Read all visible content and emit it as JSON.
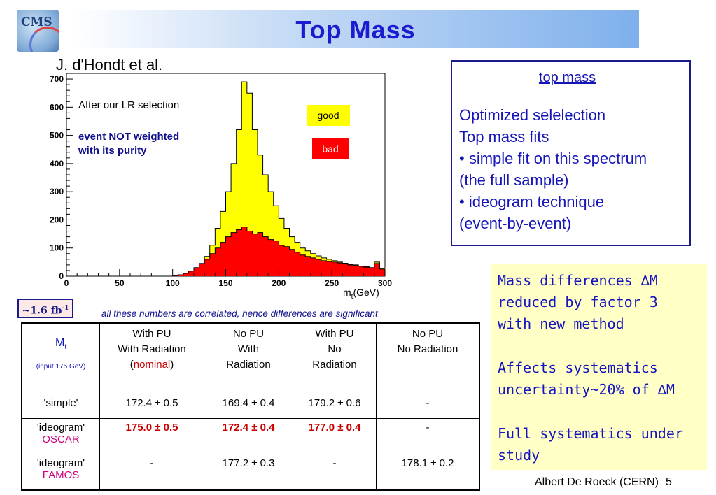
{
  "header": {
    "logo_text": "CMS",
    "title": "Top Mass"
  },
  "author_ref": "J. d'Hondt et al.",
  "plot": {
    "text_selection": "After our LR selection",
    "text_weight_line1": "event NOT weighted",
    "text_weight_line2": "with its purity",
    "legend_good": "good",
    "legend_bad": "bad",
    "xaxis_title_main": "m",
    "xaxis_title_sub": "t",
    "xaxis_title_unit": "(GeV)",
    "colors": {
      "good": "#ffff00",
      "bad": "#ff0000"
    }
  },
  "chart_data": {
    "type": "bar",
    "xlabel": "mt(GeV)",
    "xlim": [
      0,
      300
    ],
    "ylim": [
      0,
      720
    ],
    "x_ticks": [
      "0",
      "50",
      "100",
      "150",
      "200",
      "250",
      "300"
    ],
    "y_ticks": [
      "0",
      "100",
      "200",
      "300",
      "400",
      "500",
      "600",
      "700"
    ],
    "bin_width": 5,
    "bins_start": [
      100,
      105,
      110,
      115,
      120,
      125,
      130,
      135,
      140,
      145,
      150,
      155,
      160,
      165,
      170,
      175,
      180,
      185,
      190,
      195,
      200,
      205,
      210,
      215,
      220,
      225,
      230,
      235,
      240,
      245,
      250,
      255,
      260,
      265,
      270,
      275,
      280,
      285,
      290,
      295
    ],
    "series": [
      {
        "name": "good",
        "values": [
          2,
          5,
          10,
          18,
          30,
          45,
          70,
          110,
          170,
          230,
          300,
          400,
          520,
          690,
          650,
          520,
          430,
          360,
          300,
          250,
          205,
          170,
          140,
          120,
          100,
          90,
          80,
          72,
          65,
          60,
          55,
          50,
          46,
          42,
          40,
          36,
          34,
          30,
          50,
          28
        ]
      },
      {
        "name": "bad",
        "values": [
          2,
          5,
          10,
          18,
          30,
          45,
          60,
          80,
          100,
          120,
          140,
          155,
          165,
          175,
          160,
          150,
          155,
          140,
          130,
          125,
          110,
          105,
          95,
          85,
          75,
          70,
          65,
          60,
          55,
          52,
          50,
          47,
          44,
          40,
          38,
          35,
          32,
          30,
          45,
          25
        ]
      }
    ]
  },
  "lumi": {
    "value": "~1.6 fb",
    "exp": "-1"
  },
  "correlation_note": "all these numbers are correlated, hence differences are significant",
  "table": {
    "mt_label": "M",
    "mt_sub": "t",
    "mt_note": "(input 175 GeV)",
    "columns": [
      {
        "l1": "With PU",
        "l2": "With Radiation",
        "l3_pre": "(",
        "l3_nominal": "nominal",
        "l3_post": ")"
      },
      {
        "l1": "No PU",
        "l2": "With",
        "l3": "Radiation"
      },
      {
        "l1": "With PU",
        "l2": "No",
        "l3": "Radiation"
      },
      {
        "l1": "No PU",
        "l2": "No Radiation"
      }
    ],
    "rows": [
      {
        "label": "'simple'",
        "method": "",
        "values": [
          "172.4 ± 0.5",
          "169.4 ± 0.4",
          "179.2 ± 0.6",
          "-"
        ]
      },
      {
        "label": "'ideogram'",
        "method": "OSCAR",
        "values": [
          "175.0 ± 0.5",
          "172.4 ± 0.4",
          "177.0 ± 0.4",
          "-"
        ]
      },
      {
        "label": "'ideogram'",
        "method": "FAMOS",
        "values": [
          "-",
          "177.2 ± 0.3",
          "-",
          "178.1 ± 0.2"
        ]
      }
    ]
  },
  "info_box": {
    "heading": "top mass",
    "l1": "Optimized selelection",
    "l2": "Top mass fits",
    "l3": "• simple fit on this spectrum",
    "l4": "(the full sample)",
    "l5": "• ideogram technique",
    "l6": "(event-by-event)"
  },
  "yellow_box": {
    "l1": "Mass differences ∆M",
    "l2": "reduced by factor 3",
    "l3": "with new method",
    "l4": "Affects systematics",
    "l5": "uncertainty~20% of ∆M",
    "l6": "Full systematics under",
    "l7": "study"
  },
  "footer": {
    "author": "Albert De Roeck (CERN)",
    "page": "5"
  }
}
